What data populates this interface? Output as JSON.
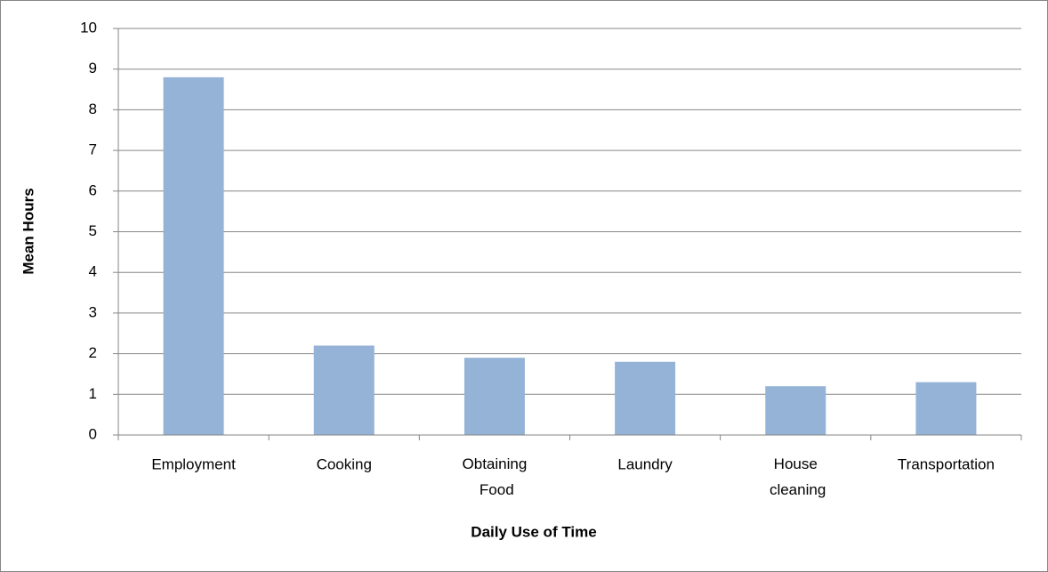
{
  "chart_data": {
    "type": "bar",
    "categories": [
      "Employment",
      "Cooking",
      "Obtaining Food",
      "Laundry",
      "House cleaning",
      "Transportation"
    ],
    "values": [
      8.8,
      2.2,
      1.9,
      1.8,
      1.2,
      1.3
    ],
    "color": "#95b3d7",
    "ylim": [
      0,
      10
    ],
    "yticks": [
      0,
      1,
      2,
      3,
      4,
      5,
      6,
      7,
      8,
      9,
      10
    ],
    "grid": true,
    "x_label": "Daily Use of Time",
    "y_label": "Mean Hours"
  }
}
